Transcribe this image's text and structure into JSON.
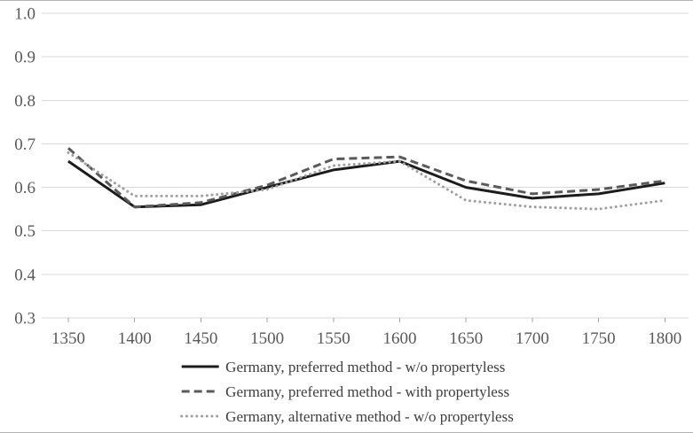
{
  "chart_data": {
    "type": "line",
    "title": "",
    "xlabel": "",
    "ylabel": "",
    "x": [
      1350,
      1400,
      1450,
      1500,
      1550,
      1600,
      1650,
      1700,
      1750,
      1800
    ],
    "xticks": [
      "1350",
      "1400",
      "1450",
      "1500",
      "1550",
      "1600",
      "1650",
      "1700",
      "1750",
      "1800"
    ],
    "yticks": [
      "0.3",
      "0.4",
      "0.5",
      "0.6",
      "0.7",
      "0.8",
      "0.9",
      "1.0"
    ],
    "ylim": [
      0.3,
      1.0
    ],
    "grid": "horizontal",
    "legend_position": "bottom-center",
    "series": [
      {
        "name": "Germany, preferred method - w/o propertyless",
        "style": "solid",
        "color": "#1c1c1c",
        "values": [
          0.66,
          0.555,
          0.56,
          0.6,
          0.64,
          0.66,
          0.6,
          0.575,
          0.585,
          0.61
        ]
      },
      {
        "name": "Germany, preferred method - with propertyless",
        "style": "dashed",
        "color": "#5a5a5a",
        "values": [
          0.69,
          0.555,
          0.565,
          0.605,
          0.665,
          0.67,
          0.615,
          0.585,
          0.595,
          0.615
        ]
      },
      {
        "name": "Germany, alternative method - w/o propertyless",
        "style": "dotted",
        "color": "#a0a0a0",
        "values": [
          0.68,
          0.58,
          0.58,
          0.595,
          0.65,
          0.66,
          0.57,
          0.555,
          0.55,
          0.57
        ]
      }
    ]
  },
  "colors": {
    "background": "#ffffff",
    "gridline": "#d9d9d9",
    "axis_tick": "#a6a6a6",
    "tick_label": "#595959",
    "legend_text": "#3d3d3d",
    "figure_rule": "#b3b3b3"
  }
}
